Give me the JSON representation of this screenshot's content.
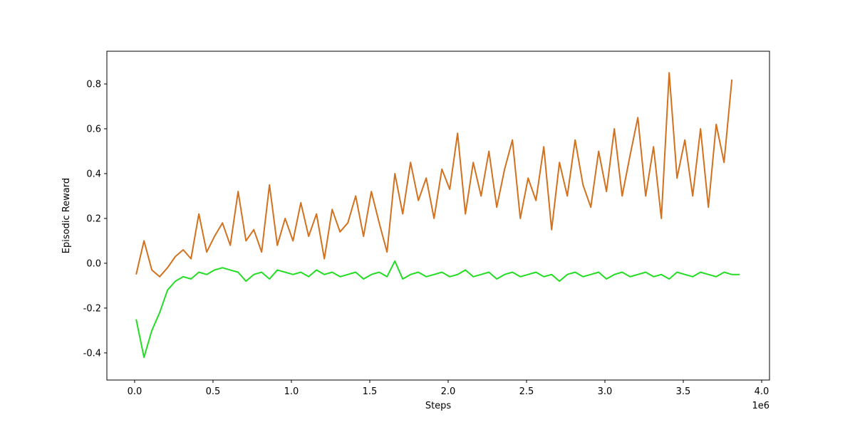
{
  "chart_data": {
    "type": "line",
    "xlabel": "Steps",
    "ylabel": "Episodic Reward",
    "x_offset_label": "1e6",
    "x": [
      10000,
      60000,
      110000,
      160000,
      210000,
      260000,
      310000,
      360000,
      410000,
      460000,
      510000,
      560000,
      610000,
      660000,
      710000,
      760000,
      810000,
      860000,
      910000,
      960000,
      1010000,
      1060000,
      1110000,
      1160000,
      1210000,
      1260000,
      1310000,
      1360000,
      1410000,
      1460000,
      1510000,
      1560000,
      1610000,
      1660000,
      1710000,
      1760000,
      1810000,
      1860000,
      1910000,
      1960000,
      2010000,
      2060000,
      2110000,
      2160000,
      2210000,
      2260000,
      2310000,
      2360000,
      2410000,
      2460000,
      2510000,
      2560000,
      2610000,
      2660000,
      2710000,
      2760000,
      2810000,
      2860000,
      2910000,
      2960000,
      3010000,
      3060000,
      3110000,
      3160000,
      3210000,
      3260000,
      3310000,
      3360000,
      3410000,
      3460000,
      3510000,
      3560000,
      3610000,
      3660000,
      3710000,
      3760000,
      3810000,
      3860000
    ],
    "series": [
      {
        "color": "#d2711e",
        "values": [
          -0.05,
          0.1,
          -0.03,
          -0.06,
          -0.02,
          0.03,
          0.06,
          0.02,
          0.22,
          0.05,
          0.12,
          0.18,
          0.08,
          0.32,
          0.1,
          0.15,
          0.05,
          0.35,
          0.08,
          0.2,
          0.1,
          0.27,
          0.12,
          0.22,
          0.02,
          0.24,
          0.14,
          0.18,
          0.3,
          0.12,
          0.32,
          0.18,
          0.05,
          0.4,
          0.22,
          0.45,
          0.28,
          0.38,
          0.2,
          0.42,
          0.33,
          0.58,
          0.22,
          0.45,
          0.3,
          0.5,
          0.25,
          0.42,
          0.55,
          0.2,
          0.38,
          0.28,
          0.52,
          0.15,
          0.45,
          0.3,
          0.55,
          0.35,
          0.25,
          0.5,
          0.32,
          0.6,
          0.3,
          0.48,
          0.65,
          0.3,
          0.52,
          0.2,
          0.85,
          0.38,
          0.55,
          0.3,
          0.6,
          0.25,
          0.62,
          0.45,
          0.82,
          null
        ]
      },
      {
        "color": "#22dd22",
        "values": [
          -0.25,
          -0.42,
          -0.3,
          -0.22,
          -0.12,
          -0.08,
          -0.06,
          -0.07,
          -0.04,
          -0.05,
          -0.03,
          -0.02,
          -0.03,
          -0.04,
          -0.08,
          -0.05,
          -0.04,
          -0.07,
          -0.03,
          -0.04,
          -0.05,
          -0.04,
          -0.06,
          -0.03,
          -0.05,
          -0.04,
          -0.06,
          -0.05,
          -0.04,
          -0.07,
          -0.05,
          -0.04,
          -0.06,
          0.01,
          -0.07,
          -0.05,
          -0.04,
          -0.06,
          -0.05,
          -0.04,
          -0.06,
          -0.05,
          -0.03,
          -0.06,
          -0.05,
          -0.04,
          -0.07,
          -0.05,
          -0.04,
          -0.06,
          -0.05,
          -0.04,
          -0.06,
          -0.05,
          -0.08,
          -0.05,
          -0.04,
          -0.06,
          -0.05,
          -0.04,
          -0.07,
          -0.05,
          -0.04,
          -0.06,
          -0.05,
          -0.04,
          -0.06,
          -0.05,
          -0.07,
          -0.04,
          -0.05,
          -0.06,
          -0.04,
          -0.05,
          -0.06,
          -0.04,
          -0.05,
          -0.05
        ]
      }
    ],
    "xlim": [
      -177000,
      4050000
    ],
    "xticks": [
      {
        "value": 0,
        "label": "0.0"
      },
      {
        "value": 500000,
        "label": "0.5"
      },
      {
        "value": 1000000,
        "label": "1.0"
      },
      {
        "value": 1500000,
        "label": "1.5"
      },
      {
        "value": 2000000,
        "label": "2.0"
      },
      {
        "value": 2500000,
        "label": "2.5"
      },
      {
        "value": 3000000,
        "label": "3.0"
      },
      {
        "value": 3500000,
        "label": "3.5"
      },
      {
        "value": 4000000,
        "label": "4.0"
      }
    ],
    "ylim": [
      -0.521,
      0.946
    ],
    "yticks": [
      -0.4,
      -0.2,
      {
        "value": 0,
        "label": "0.0"
      },
      0.2,
      0.4,
      0.6,
      0.8
    ],
    "grid": false
  }
}
